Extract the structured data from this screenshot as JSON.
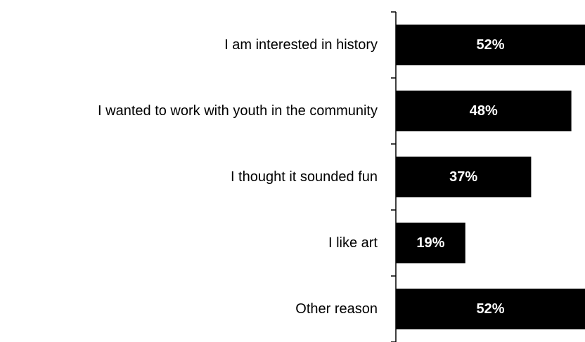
{
  "chart_data": {
    "type": "bar",
    "orientation": "horizontal",
    "categories": [
      "I am interested in history",
      "I wanted to work with youth in the community",
      "I thought it sounded fun",
      "I like art",
      "Other reason"
    ],
    "values": [
      52,
      48,
      37,
      19,
      52
    ],
    "value_labels": [
      "52%",
      "48%",
      "37%",
      "19%",
      "52%"
    ],
    "unit": "%",
    "xlim": [
      0,
      50
    ],
    "grid": false,
    "legend": "none",
    "colors": {
      "bar": "#000000",
      "value_label": "#ffffff",
      "axis": "#000000",
      "text": "#000000"
    }
  }
}
